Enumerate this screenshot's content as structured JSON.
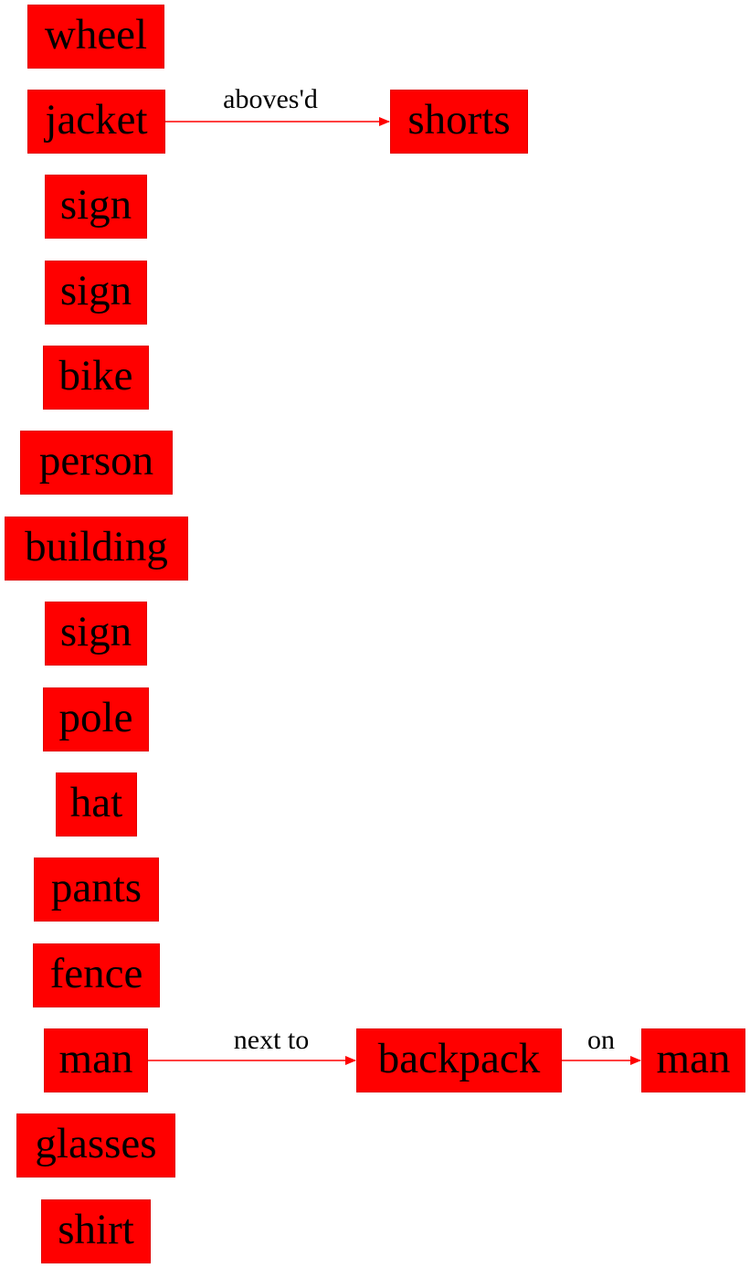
{
  "graph": {
    "colors": {
      "node_fill": "#ff0000",
      "node_border": "#e00000",
      "edge": "#ff0000",
      "text": "#000000"
    },
    "nodes": [
      {
        "id": "n1",
        "label": "wheel"
      },
      {
        "id": "n2",
        "label": "jacket"
      },
      {
        "id": "n3",
        "label": "shorts"
      },
      {
        "id": "n4",
        "label": "sign"
      },
      {
        "id": "n5",
        "label": "sign"
      },
      {
        "id": "n6",
        "label": "bike"
      },
      {
        "id": "n7",
        "label": "person"
      },
      {
        "id": "n8",
        "label": "building"
      },
      {
        "id": "n9",
        "label": "sign"
      },
      {
        "id": "n10",
        "label": "pole"
      },
      {
        "id": "n11",
        "label": "hat"
      },
      {
        "id": "n12",
        "label": "pants"
      },
      {
        "id": "n13",
        "label": "fence"
      },
      {
        "id": "n14",
        "label": "man"
      },
      {
        "id": "n15",
        "label": "backpack"
      },
      {
        "id": "n16",
        "label": "man"
      },
      {
        "id": "n17",
        "label": "glasses"
      },
      {
        "id": "n18",
        "label": "shirt"
      }
    ],
    "edges": [
      {
        "from": "n2",
        "to": "n3",
        "label": "aboves'd"
      },
      {
        "from": "n14",
        "to": "n15",
        "label": "next to"
      },
      {
        "from": "n15",
        "to": "n16",
        "label": "on"
      }
    ]
  }
}
